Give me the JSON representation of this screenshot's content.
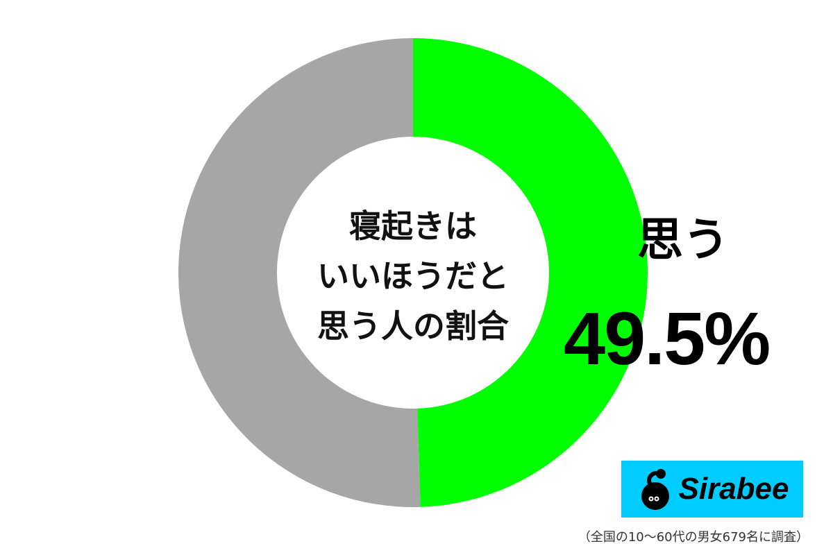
{
  "chart_data": {
    "type": "pie",
    "donut": true,
    "center_title_lines": [
      "寝起きは",
      "いいほうだと",
      "思う人の割合"
    ],
    "slices": [
      {
        "label": "思う",
        "value": 49.5,
        "color": "#00ff00",
        "value_label": "49.5%"
      },
      {
        "label": "",
        "value": 50.5,
        "color": "#a6a6a6"
      }
    ],
    "start": "top",
    "direction": "clockwise"
  },
  "logo": {
    "text": "Sirabee",
    "background": "#00ccff"
  },
  "footnote": "（全国の10〜60代の男女679名に調査）"
}
